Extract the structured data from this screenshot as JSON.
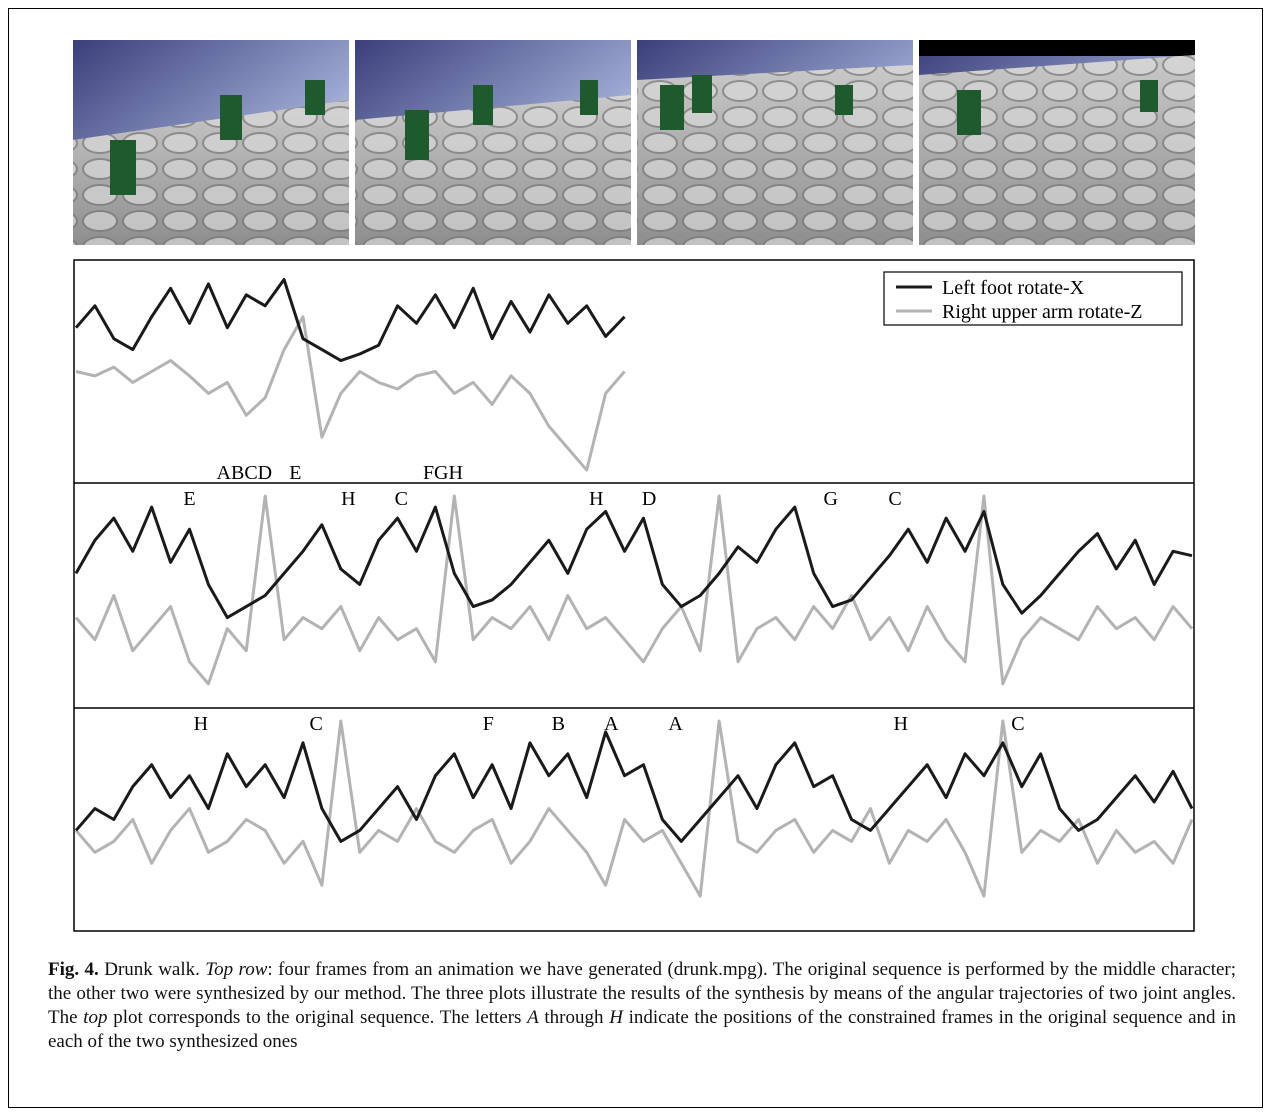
{
  "chart_data": [
    {
      "type": "line",
      "xlim": [
        0,
        59
      ],
      "ylim": [
        0,
        100
      ],
      "legend": "top-right",
      "series": [
        {
          "name": "Left foot rotate-X",
          "color": "#1a1a1a",
          "values": [
            70,
            80,
            65,
            60,
            75,
            88,
            72,
            90,
            70,
            85,
            80,
            92,
            65,
            60,
            55,
            58,
            62,
            80,
            72,
            85,
            70,
            88,
            65,
            82,
            68,
            85,
            72,
            80,
            66,
            75
          ]
        },
        {
          "name": "Right upper arm rotate-Z",
          "color": "#b3b3b3",
          "values": [
            50,
            48,
            52,
            45,
            50,
            55,
            48,
            40,
            45,
            30,
            38,
            60,
            75,
            20,
            40,
            50,
            45,
            42,
            48,
            50,
            40,
            45,
            35,
            48,
            40,
            25,
            15,
            5,
            40,
            50
          ]
        }
      ],
      "annotations": [
        {
          "text": "ABCD",
          "x": 8.9
        },
        {
          "text": "E",
          "x": 11.6
        },
        {
          "text": "FGH",
          "x": 19.4
        }
      ]
    },
    {
      "type": "line",
      "xlim": [
        0,
        59
      ],
      "ylim": [
        0,
        100
      ],
      "series": [
        {
          "color": "#1a1a1a",
          "values": [
            60,
            75,
            85,
            70,
            90,
            65,
            80,
            55,
            40,
            45,
            50,
            60,
            70,
            82,
            62,
            55,
            75,
            85,
            70,
            90,
            60,
            45,
            48,
            55,
            65,
            75,
            60,
            80,
            88,
            70,
            85,
            55,
            45,
            50,
            60,
            72,
            65,
            80,
            90,
            60,
            45,
            48,
            58,
            68,
            80,
            65,
            85,
            70,
            88,
            55,
            42,
            50,
            60,
            70,
            78,
            62,
            75,
            55,
            70,
            68
          ]
        },
        {
          "color": "#b3b3b3",
          "values": [
            40,
            30,
            50,
            25,
            35,
            45,
            20,
            10,
            35,
            25,
            95,
            30,
            40,
            35,
            45,
            25,
            40,
            30,
            35,
            20,
            95,
            30,
            40,
            35,
            45,
            30,
            50,
            35,
            40,
            30,
            20,
            35,
            45,
            25,
            95,
            20,
            35,
            40,
            30,
            45,
            35,
            50,
            30,
            40,
            25,
            45,
            30,
            20,
            95,
            10,
            30,
            40,
            35,
            30,
            45,
            35,
            40,
            30,
            45,
            35
          ]
        }
      ],
      "annotations": [
        {
          "text": "E",
          "x": 6
        },
        {
          "text": "H",
          "x": 14.4
        },
        {
          "text": "C",
          "x": 17.2
        },
        {
          "text": "H",
          "x": 27.5
        },
        {
          "text": "D",
          "x": 30.3
        },
        {
          "text": "G",
          "x": 39.9
        },
        {
          "text": "C",
          "x": 43.3
        }
      ]
    },
    {
      "type": "line",
      "xlim": [
        0,
        59
      ],
      "ylim": [
        0,
        100
      ],
      "series": [
        {
          "color": "#1a1a1a",
          "values": [
            45,
            55,
            50,
            65,
            75,
            60,
            70,
            55,
            80,
            65,
            75,
            60,
            85,
            55,
            40,
            45,
            55,
            65,
            50,
            70,
            80,
            60,
            75,
            55,
            85,
            70,
            80,
            60,
            90,
            70,
            75,
            50,
            40,
            50,
            60,
            70,
            55,
            75,
            85,
            65,
            70,
            50,
            45,
            55,
            65,
            75,
            60,
            80,
            70,
            85,
            65,
            80,
            55,
            45,
            50,
            60,
            70,
            58,
            72,
            55
          ]
        },
        {
          "color": "#b3b3b3",
          "values": [
            45,
            35,
            40,
            50,
            30,
            45,
            55,
            35,
            40,
            50,
            45,
            30,
            40,
            20,
            95,
            35,
            45,
            40,
            55,
            40,
            35,
            45,
            50,
            30,
            40,
            55,
            45,
            35,
            20,
            50,
            40,
            45,
            30,
            15,
            95,
            40,
            35,
            45,
            50,
            35,
            45,
            40,
            55,
            30,
            45,
            40,
            50,
            35,
            15,
            95,
            35,
            45,
            40,
            50,
            30,
            45,
            35,
            40,
            30,
            50
          ]
        }
      ],
      "annotations": [
        {
          "text": "H",
          "x": 6.6
        },
        {
          "text": "C",
          "x": 12.7
        },
        {
          "text": "F",
          "x": 21.8
        },
        {
          "text": "B",
          "x": 25.5
        },
        {
          "text": "A",
          "x": 28.3
        },
        {
          "text": "A",
          "x": 31.7
        },
        {
          "text": "H",
          "x": 43.6
        },
        {
          "text": "C",
          "x": 49.8
        }
      ]
    }
  ],
  "caption": {
    "label": "Fig. 4.",
    "s1": " Drunk walk. ",
    "s2": "Top row",
    "s3": ": four frames from an animation we have generated (drunk.mpg). The original sequence is performed by the middle character; the other two were synthesized by our method. The three plots illustrate the results of the synthesis by means of the angular trajectories of two joint angles. The ",
    "s4": "top",
    "s5": " plot corresponds to the original sequence. The letters ",
    "s6": "A",
    "s7": " through ",
    "s8": "H",
    "s9": " indicate the positions of the constrained frames in the original sequence and in each of the two synthesized ones"
  }
}
